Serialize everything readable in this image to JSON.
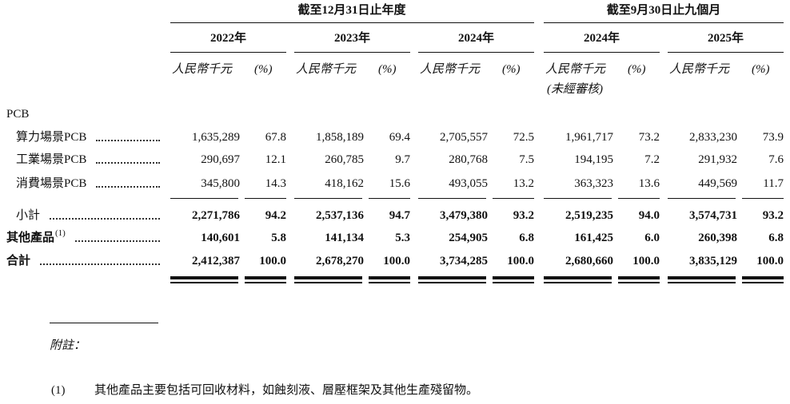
{
  "header": {
    "group_titles": [
      "截至12月31日止年度",
      "截至9月30日止九個月"
    ],
    "years": [
      "2022年",
      "2023年",
      "2024年",
      "2024年",
      "2025年"
    ],
    "units": [
      "人民幣千元",
      "(%)",
      "人民幣千元",
      "(%)",
      "人民幣千元",
      "(%)",
      "人民幣千元",
      "(%)",
      "人民幣千元",
      "(%)"
    ],
    "unaudited_note": "(未經審核)"
  },
  "table": {
    "section_label": "PCB",
    "rows": [
      {
        "label": "算力場景PCB",
        "cells": [
          "1,635,289",
          "67.8",
          "1,858,189",
          "69.4",
          "2,705,557",
          "72.5",
          "1,961,717",
          "73.2",
          "2,833,230",
          "73.9"
        ]
      },
      {
        "label": "工業場景PCB",
        "cells": [
          "290,697",
          "12.1",
          "260,785",
          "9.7",
          "280,768",
          "7.5",
          "194,195",
          "7.2",
          "291,932",
          "7.6"
        ]
      },
      {
        "label": "消費場景PCB",
        "cells": [
          "345,800",
          "14.3",
          "418,162",
          "15.6",
          "493,055",
          "13.2",
          "363,323",
          "13.6",
          "449,569",
          "11.7"
        ]
      },
      {
        "label": "小計",
        "cells": [
          "2,271,786",
          "94.2",
          "2,537,136",
          "94.7",
          "3,479,380",
          "93.2",
          "2,519,235",
          "94.0",
          "3,574,731",
          "93.2"
        ]
      },
      {
        "label": "其他產品",
        "footnote_ref": "(1)",
        "cells": [
          "140,601",
          "5.8",
          "141,134",
          "5.3",
          "254,905",
          "6.8",
          "161,425",
          "6.0",
          "260,398",
          "6.8"
        ]
      },
      {
        "label": "合計",
        "cells": [
          "2,412,387",
          "100.0",
          "2,678,270",
          "100.0",
          "3,734,285",
          "100.0",
          "2,680,660",
          "100.0",
          "3,835,129",
          "100.0"
        ]
      }
    ]
  },
  "notes": {
    "title": "附註：",
    "items": [
      {
        "marker": "(1)",
        "text": "其他產品主要包括可回收材料，如蝕刻液、層壓框架及其他生產殘留物。"
      }
    ]
  }
}
